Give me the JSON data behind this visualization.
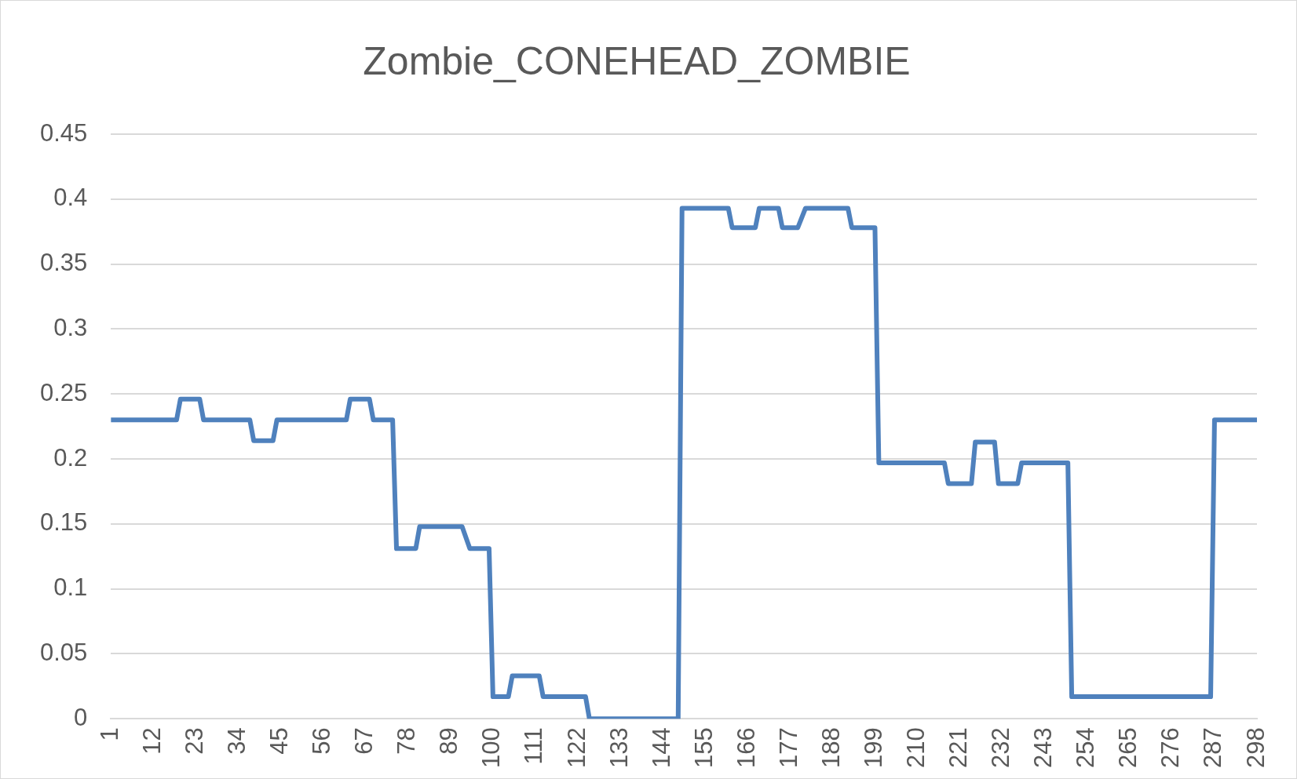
{
  "chart_data": {
    "type": "line",
    "title": "Zombie_CONEHEAD_ZOMBIE",
    "x": [
      1,
      18,
      19,
      24,
      25,
      37,
      38,
      43,
      44,
      62,
      63,
      68,
      69,
      74,
      75,
      80,
      81,
      92,
      94,
      99,
      100,
      104,
      105,
      112,
      113,
      124,
      125,
      148,
      149,
      161,
      162,
      168,
      169,
      174,
      175,
      179,
      181,
      192,
      193,
      199,
      200,
      217,
      218,
      224,
      225,
      230,
      231,
      236,
      237,
      249,
      250,
      286,
      287,
      298
    ],
    "series": [
      {
        "color": "#4f81bd",
        "values": [
          0.23,
          0.23,
          0.246,
          0.246,
          0.23,
          0.23,
          0.214,
          0.214,
          0.23,
          0.23,
          0.246,
          0.246,
          0.23,
          0.23,
          0.131,
          0.131,
          0.148,
          0.148,
          0.131,
          0.131,
          0.017,
          0.017,
          0.033,
          0.033,
          0.017,
          0.017,
          0,
          0,
          0.393,
          0.393,
          0.378,
          0.378,
          0.393,
          0.393,
          0.378,
          0.378,
          0.393,
          0.393,
          0.378,
          0.378,
          0.197,
          0.197,
          0.181,
          0.181,
          0.213,
          0.213,
          0.181,
          0.181,
          0.197,
          0.197,
          0.017,
          0.017,
          0.23,
          0.23
        ]
      }
    ],
    "xlim": [
      1,
      298
    ],
    "xticks": [
      1,
      12,
      23,
      34,
      45,
      56,
      67,
      78,
      89,
      100,
      111,
      122,
      133,
      144,
      155,
      166,
      177,
      188,
      199,
      210,
      221,
      232,
      243,
      254,
      265,
      276,
      287,
      298
    ],
    "ylim": [
      0,
      0.45
    ],
    "yticks": [
      0,
      0.05,
      0.1,
      0.15,
      0.2,
      0.25,
      0.3,
      0.35,
      0.4,
      0.45
    ],
    "grid": "y",
    "legend": false,
    "marker": "none",
    "line_style": "solid"
  }
}
